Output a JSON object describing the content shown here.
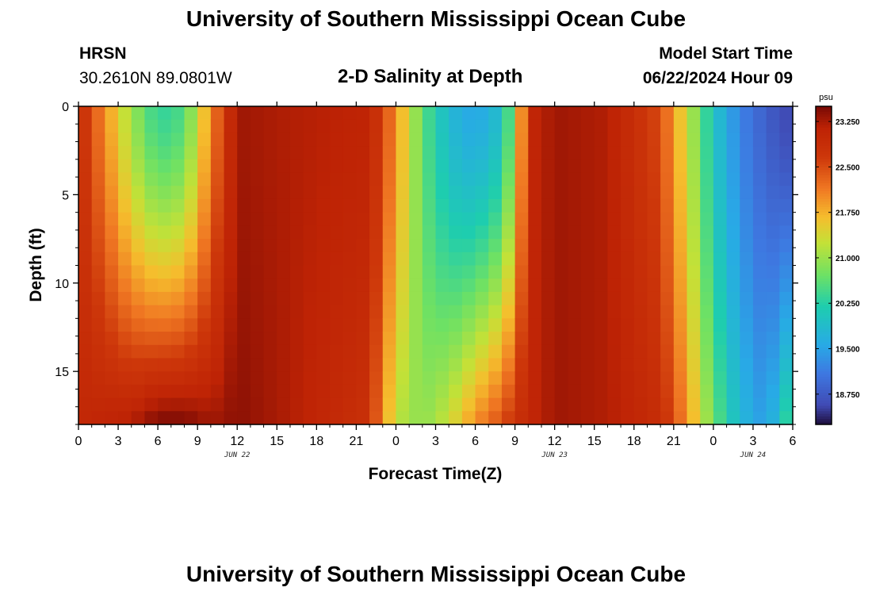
{
  "page": {
    "title_top": "University of Southern Mississippi Ocean Cube",
    "title_bottom": "University of Southern Mississippi Ocean Cube",
    "station": "HRSN",
    "coords": "30.2610N  89.0801W",
    "subtitle": "2-D Salinity at Depth",
    "model_start_label": "Model Start Time",
    "model_start_value": "06/22/2024 Hour 09"
  },
  "chart_data": {
    "type": "heatmap",
    "title": "2-D Salinity at Depth",
    "xlabel": "Forecast Time(Z)",
    "ylabel": "Depth (ft)",
    "x_tick_labels": [
      "0",
      "3",
      "6",
      "9",
      "12",
      "15",
      "18",
      "21",
      "0",
      "3",
      "6",
      "9",
      "12",
      "15",
      "18",
      "21",
      "0",
      "3",
      "6"
    ],
    "x_hours": [
      0,
      3,
      6,
      9,
      12,
      15,
      18,
      21,
      24,
      27,
      30,
      33,
      36,
      39,
      42,
      45,
      48,
      51,
      54
    ],
    "xlim_hours": [
      0,
      54
    ],
    "date_labels": [
      {
        "label": "JUN 22",
        "hour": 12
      },
      {
        "label": "JUN 23",
        "hour": 36
      },
      {
        "label": "JUN 24",
        "hour": 51
      }
    ],
    "y_ticks": [
      0,
      5,
      10,
      15
    ],
    "ylim_ft": [
      0,
      18
    ],
    "colorbar": {
      "unit": "psu",
      "min": 18.25,
      "max": 23.5,
      "ticks": [
        "23.250",
        "22.500",
        "21.750",
        "21.000",
        "20.250",
        "19.500",
        "18.750"
      ]
    },
    "salinity_profile": {
      "description": "approximate psu along time, surface (0 ft) and bottom (18 ft)",
      "hours": [
        0,
        2,
        4,
        6,
        8,
        10,
        12,
        16,
        22,
        24,
        26,
        28,
        30,
        32,
        33,
        34,
        36,
        40,
        44,
        46,
        48,
        50,
        52,
        54
      ],
      "surface": [
        22.9,
        22.0,
        21.0,
        20.3,
        20.5,
        22.0,
        23.3,
        23.2,
        23.1,
        22.0,
        20.6,
        19.8,
        19.5,
        19.9,
        21.0,
        23.0,
        23.3,
        23.2,
        22.5,
        21.3,
        20.0,
        19.2,
        18.8,
        18.5
      ],
      "bottom": [
        23.0,
        23.1,
        23.2,
        23.5,
        23.5,
        23.3,
        23.4,
        23.2,
        22.8,
        21.2,
        20.9,
        21.3,
        22.0,
        22.5,
        22.8,
        23.0,
        23.3,
        23.2,
        22.9,
        22.0,
        20.7,
        19.8,
        19.4,
        20.6
      ]
    }
  }
}
